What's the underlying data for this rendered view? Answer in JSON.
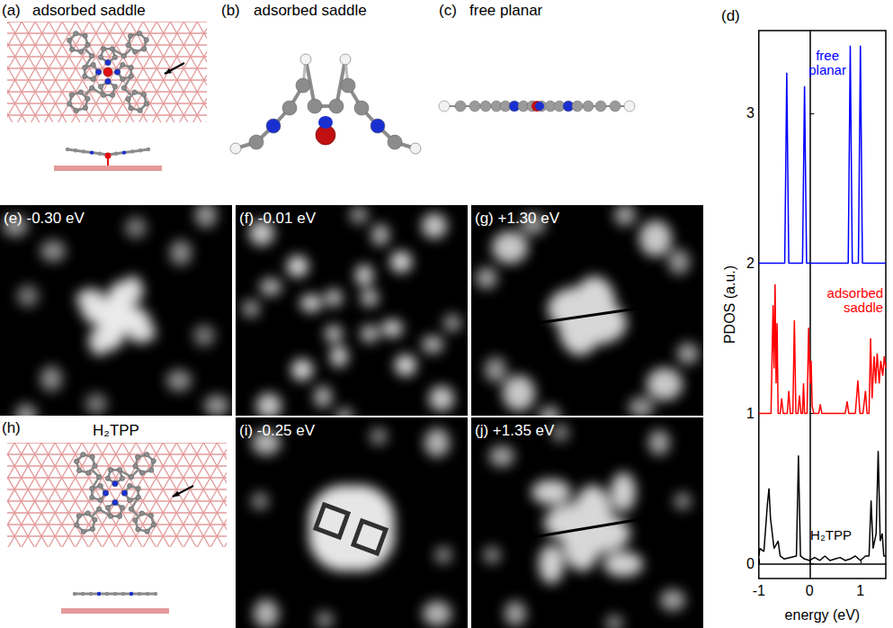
{
  "panels": {
    "a": {
      "label": "(a)",
      "title": "adsorbed saddle"
    },
    "b": {
      "label": "(b)",
      "title": "adsorbed saddle"
    },
    "c": {
      "label": "(c)",
      "title": "free planar"
    },
    "e": {
      "label": "(e)",
      "title": "-0.30 eV"
    },
    "f": {
      "label": "(f)",
      "title": "-0.01 eV"
    },
    "g": {
      "label": "(g)",
      "title": "+1.30 eV"
    },
    "h": {
      "label": "(h)",
      "title": "H₂TPP"
    },
    "i": {
      "label": "(i)",
      "title": "-0.25 eV"
    },
    "j": {
      "label": "(j)",
      "title": "+1.35 eV"
    }
  },
  "chart_data": {
    "type": "line",
    "panel_label": "(d)",
    "xlabel": "energy (eV)",
    "ylabel": "PDOS (a.u.)",
    "xlim": [
      -1,
      1.5
    ],
    "xticks": [
      -1,
      0,
      1
    ],
    "ylim": [
      -0.1,
      3.55
    ],
    "yticks": [
      0,
      1,
      2,
      3
    ],
    "grid": false,
    "series": [
      {
        "name": "free planar",
        "color": "#0000ff",
        "x": [
          -1,
          -0.49,
          -0.45,
          -0.41,
          -0.14,
          -0.1,
          -0.06,
          0.76,
          0.8,
          0.84,
          0.96,
          1.0,
          1.04,
          1.5
        ],
        "values": [
          2,
          2,
          3.27,
          2,
          2,
          3.18,
          2,
          2,
          3.45,
          2,
          2,
          3.45,
          2,
          2
        ]
      },
      {
        "name": "adsorbed saddle",
        "color": "#ff0000",
        "x": [
          -1,
          -0.76,
          -0.72,
          -0.7,
          -0.68,
          -0.66,
          -0.64,
          -0.62,
          -0.58,
          -0.55,
          -0.52,
          -0.44,
          -0.41,
          -0.38,
          -0.33,
          -0.3,
          -0.27,
          -0.23,
          -0.2,
          -0.17,
          -0.14,
          -0.12,
          -0.1,
          -0.05,
          -0.02,
          0.01,
          0.03,
          0.05,
          0.08,
          0.18,
          0.21,
          0.24,
          0.7,
          0.74,
          0.77,
          0.9,
          0.95,
          0.99,
          1.05,
          1.1,
          1.13,
          1.17,
          1.2,
          1.23,
          1.27,
          1.3,
          1.33,
          1.37,
          1.4,
          1.44,
          1.47,
          1.5
        ],
        "values": [
          1,
          1,
          1.72,
          1.3,
          1.86,
          1.2,
          1.6,
          1.0,
          1.0,
          1.1,
          1.0,
          1.0,
          1.15,
          1.0,
          1.0,
          1.62,
          1.0,
          1.0,
          1.12,
          1.0,
          1.0,
          1.2,
          1.0,
          1.0,
          1.57,
          1.2,
          1.35,
          1.05,
          1.0,
          1.0,
          1.06,
          1.0,
          1.0,
          1.08,
          1.0,
          1.0,
          1.22,
          1.0,
          1.0,
          1.15,
          1.0,
          1.0,
          1.5,
          1.1,
          1.38,
          1.2,
          1.4,
          1.2,
          1.35,
          1.25,
          1.38,
          1.3
        ]
      },
      {
        "name": "H₂TPP",
        "color": "#000000",
        "x": [
          -1,
          -0.98,
          -0.9,
          -0.83,
          -0.8,
          -0.77,
          -0.7,
          -0.62,
          -0.58,
          -0.5,
          -0.26,
          -0.22,
          -0.18,
          -0.1,
          0.0,
          0.1,
          0.2,
          0.3,
          0.4,
          0.5,
          0.6,
          0.7,
          0.8,
          0.9,
          1.0,
          1.1,
          1.17,
          1.21,
          1.25,
          1.31,
          1.35,
          1.39,
          1.43,
          1.46,
          1.5
        ],
        "values": [
          0.05,
          0.1,
          0.08,
          0.4,
          0.5,
          0.3,
          0.1,
          0.15,
          0.05,
          0.03,
          0.05,
          0.72,
          0.05,
          0.03,
          0.02,
          0.04,
          0.02,
          0.05,
          0.02,
          0.03,
          0.04,
          0.02,
          0.03,
          0.05,
          0.02,
          0.05,
          0.05,
          0.42,
          0.1,
          0.2,
          0.75,
          0.15,
          0.2,
          0.05,
          0.05
        ]
      }
    ]
  }
}
